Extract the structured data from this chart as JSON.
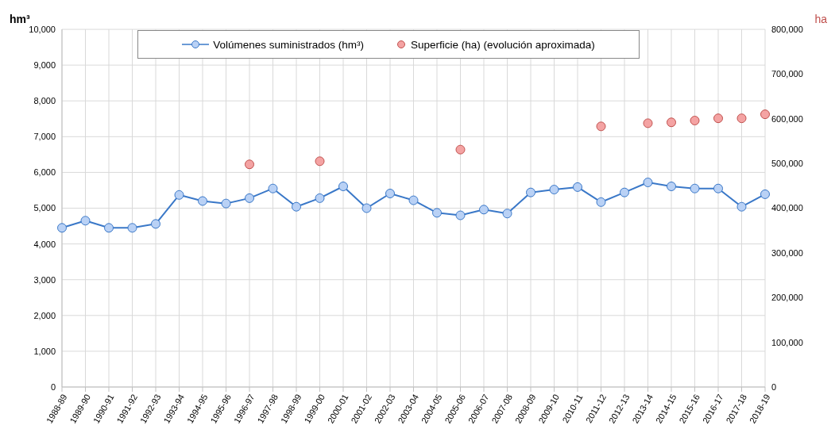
{
  "chart_data": {
    "type": "line",
    "ylabel": "hm³",
    "y2label": "ha",
    "categories": [
      "1988-89",
      "1989-90",
      "1990-91",
      "1991-92",
      "1992-93",
      "1993-94",
      "1994-95",
      "1995-96",
      "1996-97",
      "1997-98",
      "1998-99",
      "1999-00",
      "2000-01",
      "2001-02",
      "2002-03",
      "2003-04",
      "2004-05",
      "2005-06",
      "2006-07",
      "2007-08",
      "2008-09",
      "2009-10",
      "2010-11",
      "2011-12",
      "2012-13",
      "2013-14",
      "2014-15",
      "2015-16",
      "2016-17",
      "2017-18",
      "2018-19"
    ],
    "series": [
      {
        "name": "Volúmenes suministrados (hm³)",
        "color": "#3a78c8",
        "marker": "circle",
        "values": [
          4450,
          4650,
          4450,
          4450,
          4560,
          5370,
          5200,
          5130,
          5280,
          5550,
          5040,
          5280,
          5610,
          5000,
          5410,
          5220,
          4870,
          4800,
          4960,
          4850,
          5440,
          5520,
          5590,
          5170,
          5440,
          5720,
          5610,
          5550,
          5550,
          5040,
          5390
        ]
      },
      {
        "name": "Superficie (ha) (evolución aproximada)",
        "type": "scatter",
        "axis": "y2",
        "color": "#f4a3a3",
        "marker": "circle",
        "values": [
          null,
          null,
          null,
          null,
          null,
          null,
          null,
          null,
          498000,
          null,
          null,
          505000,
          null,
          null,
          null,
          null,
          null,
          531000,
          null,
          null,
          null,
          null,
          null,
          583000,
          null,
          590000,
          592000,
          596000,
          601000,
          601000,
          610000
        ]
      }
    ],
    "ylim": [
      0,
      10000
    ],
    "yticks": [
      {
        "value": 0,
        "label": "0"
      },
      {
        "value": 1000,
        "label": "1,000"
      },
      {
        "value": 2000,
        "label": "2,000"
      },
      {
        "value": 3000,
        "label": "3,000"
      },
      {
        "value": 4000,
        "label": "4,000"
      },
      {
        "value": 5000,
        "label": "5,000"
      },
      {
        "value": 6000,
        "label": "6,000"
      },
      {
        "value": 7000,
        "label": "7,000"
      },
      {
        "value": 8000,
        "label": "8,000"
      },
      {
        "value": 9000,
        "label": "9,000"
      },
      {
        "value": 10000,
        "label": "10,000"
      }
    ],
    "y2lim": [
      0,
      800000
    ],
    "y2ticks": [
      {
        "value": 0,
        "label": "0"
      },
      {
        "value": 100000,
        "label": "100,000"
      },
      {
        "value": 200000,
        "label": "200,000"
      },
      {
        "value": 300000,
        "label": "300,000"
      },
      {
        "value": 400000,
        "label": "400,000"
      },
      {
        "value": 500000,
        "label": "500,000"
      },
      {
        "value": 600000,
        "label": "600,000"
      },
      {
        "value": 700000,
        "label": "700,000"
      },
      {
        "value": 800000,
        "label": "800,000"
      }
    ],
    "grid": true,
    "legend": "top"
  }
}
